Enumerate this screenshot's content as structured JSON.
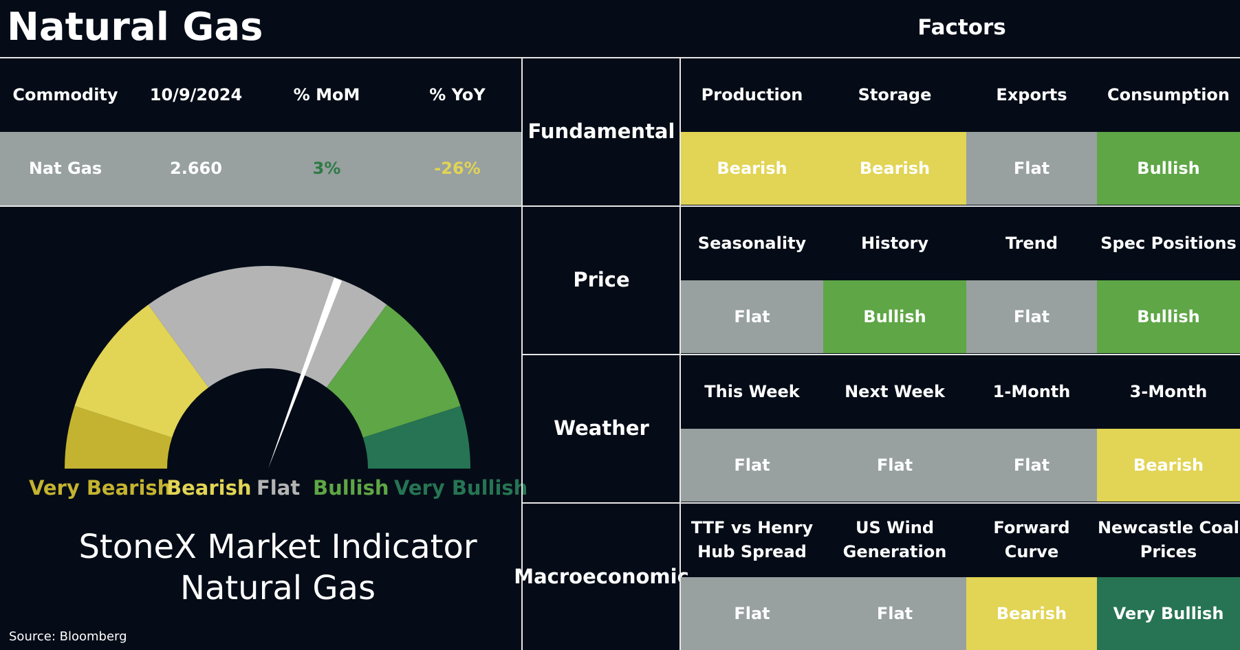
{
  "title": "Natural Gas",
  "factors_title": "Factors",
  "commodity_table": {
    "headers": [
      "Commodity",
      "10/9/2024",
      "% MoM",
      "% YoY"
    ],
    "row": {
      "commodity": "Nat Gas",
      "price": "2.660",
      "mom": "3%",
      "yoy": "-26%"
    },
    "mom_color": "#2f7a46",
    "yoy_color": "#e2d454"
  },
  "gauge": {
    "labels": [
      "Very Bearish",
      "Bearish",
      "Flat",
      "Bullish",
      "Very Bullish"
    ],
    "colors": {
      "very_bearish": "#c4b330",
      "bearish": "#e2d454",
      "flat": "#b4b4b4",
      "bullish": "#5ea646",
      "very_bullish": "#267453"
    },
    "needle_label": "Flat"
  },
  "indicator": {
    "line1": "StoneX Market Indicator",
    "line2": "Natural Gas"
  },
  "source": "Source: Bloomberg",
  "factors": [
    {
      "category": "Fundamental",
      "items": [
        {
          "label": "Production",
          "value": "Bearish",
          "tone": "yellow"
        },
        {
          "label": "Storage",
          "value": "Bearish",
          "tone": "yellow"
        },
        {
          "label": "Exports",
          "value": "Flat",
          "tone": "grey"
        },
        {
          "label": "Consumption",
          "value": "Bullish",
          "tone": "green"
        }
      ]
    },
    {
      "category": "Price",
      "items": [
        {
          "label": "Seasonality",
          "value": "Flat",
          "tone": "grey"
        },
        {
          "label": "History",
          "value": "Bullish",
          "tone": "green"
        },
        {
          "label": "Trend",
          "value": "Flat",
          "tone": "grey"
        },
        {
          "label": "Spec Positions",
          "value": "Bullish",
          "tone": "green"
        }
      ]
    },
    {
      "category": "Weather",
      "items": [
        {
          "label": "This Week",
          "value": "Flat",
          "tone": "grey"
        },
        {
          "label": "Next Week",
          "value": "Flat",
          "tone": "grey"
        },
        {
          "label": "1-Month",
          "value": "Flat",
          "tone": "grey"
        },
        {
          "label": "3-Month",
          "value": "Bearish",
          "tone": "yellow"
        }
      ]
    },
    {
      "category": "Macroeconomic",
      "items": [
        {
          "label": "TTF vs Henry Hub Spread",
          "value": "Flat",
          "tone": "grey"
        },
        {
          "label": "US Wind Generation",
          "value": "Flat",
          "tone": "grey"
        },
        {
          "label": "Forward Curve",
          "value": "Bearish",
          "tone": "yellow"
        },
        {
          "label": "Newcastle Coal Prices",
          "value": "Very Bullish",
          "tone": "dgreen"
        }
      ]
    }
  ]
}
